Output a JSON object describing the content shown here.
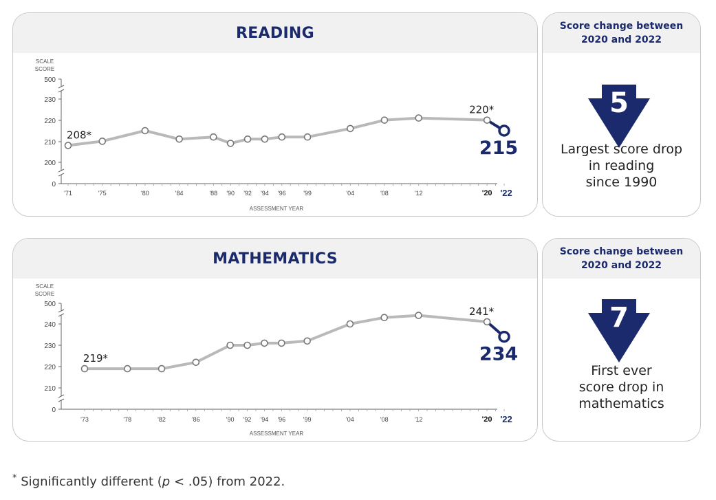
{
  "reading": {
    "title": "READING",
    "side_header_line1": "Score change between",
    "side_header_line2": "2020 and 2022",
    "change": "5",
    "desc_lines": [
      "Largest score drop",
      "in reading",
      "since 1990"
    ]
  },
  "math": {
    "title": "MATHEMATICS",
    "side_header_line1": "Score change between",
    "side_header_line2": "2020 and 2022",
    "change": "7",
    "desc_lines": [
      "First ever",
      "score drop in",
      "mathematics"
    ]
  },
  "footnote": {
    "star": "*",
    "pre": "Significantly different (",
    "p": "p",
    "post": " < .05) from 2022."
  },
  "colors": {
    "navy": "#1a2a6c",
    "line_gray": "#b9b9b9",
    "axis": "#666666"
  },
  "chart_data": [
    {
      "type": "line",
      "title": "READING",
      "ylabel": "SCALE SCORE",
      "xlabel": "ASSESSMENT YEAR",
      "yticks": [
        "500",
        "230",
        "220",
        "210",
        "200",
        "0"
      ],
      "y_axis_break": true,
      "ylim": [
        195,
        235
      ],
      "x_tick_labels": [
        "'71",
        "'75",
        "'80",
        "'84",
        "'88",
        "'90",
        "'92",
        "'94",
        "'96",
        "'99",
        "'04",
        "'08",
        "'12",
        "'20",
        "'22"
      ],
      "series": [
        {
          "x": [
            1971,
            1975,
            1980,
            1984,
            1988,
            1990,
            1992,
            1994,
            1996,
            1999,
            2004,
            2008,
            2012,
            2020
          ],
          "values": [
            208,
            210,
            215,
            211,
            212,
            209,
            211,
            211,
            212,
            212,
            216,
            220,
            221,
            220
          ]
        },
        {
          "x": [
            2020,
            2022
          ],
          "values": [
            220,
            215
          ]
        }
      ],
      "labels": [
        {
          "x": 1971,
          "text": "208*"
        },
        {
          "x": 2020,
          "text": "220*"
        },
        {
          "x": 2022,
          "text": "215"
        }
      ]
    },
    {
      "type": "line",
      "title": "MATHEMATICS",
      "ylabel": "SCALE SCORE",
      "xlabel": "ASSESSMENT YEAR",
      "yticks": [
        "500",
        "240",
        "230",
        "220",
        "210",
        "0"
      ],
      "y_axis_break": true,
      "ylim": [
        205,
        245
      ],
      "x_tick_labels": [
        "'73",
        "'78",
        "'82",
        "'86",
        "'90",
        "'92",
        "'94",
        "'96",
        "'99",
        "'04",
        "'08",
        "'12",
        "'20",
        "'22"
      ],
      "series": [
        {
          "x": [
            1973,
            1978,
            1982,
            1986,
            1990,
            1992,
            1994,
            1996,
            1999,
            2004,
            2008,
            2012,
            2020
          ],
          "values": [
            219,
            219,
            219,
            222,
            230,
            230,
            231,
            231,
            232,
            240,
            243,
            244,
            241
          ]
        },
        {
          "x": [
            2020,
            2022
          ],
          "values": [
            241,
            234
          ]
        }
      ],
      "labels": [
        {
          "x": 1973,
          "text": "219*"
        },
        {
          "x": 2020,
          "text": "241*"
        },
        {
          "x": 2022,
          "text": "234"
        }
      ]
    }
  ]
}
